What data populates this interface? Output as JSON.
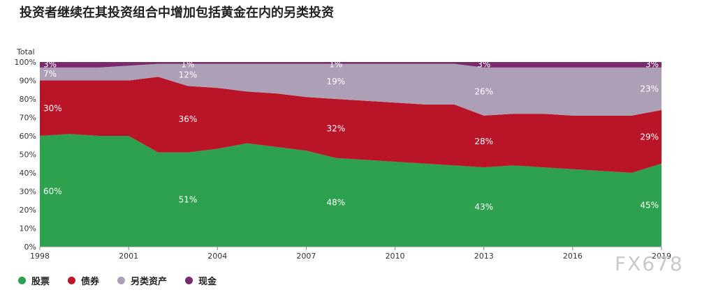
{
  "title": "投资者继续在其投资组合中增加包括黄金在内的另类投资",
  "watermark": "FX678",
  "chart_data": {
    "type": "area",
    "stacked": true,
    "percent": true,
    "ylabel": "Total",
    "ylim": [
      0,
      100
    ],
    "y_ticks": [
      "0%",
      "10%",
      "20%",
      "30%",
      "40%",
      "50%",
      "60%",
      "70%",
      "80%",
      "90%",
      "100%"
    ],
    "x_ticks": [
      1998,
      2001,
      2004,
      2007,
      2010,
      2013,
      2016,
      2019
    ],
    "x": [
      1998,
      1999,
      2000,
      2001,
      2002,
      2003,
      2004,
      2005,
      2006,
      2007,
      2008,
      2009,
      2010,
      2011,
      2012,
      2013,
      2014,
      2015,
      2016,
      2017,
      2018,
      2019
    ],
    "series": [
      {
        "name": "股票",
        "color": "#2ea14f",
        "values": [
          60,
          61,
          60,
          60,
          51,
          51,
          53,
          56,
          54,
          52,
          48,
          47,
          46,
          45,
          44,
          43,
          44,
          43,
          42,
          41,
          40,
          45
        ]
      },
      {
        "name": "债券",
        "color": "#b91428",
        "values": [
          30,
          29,
          30,
          30,
          41,
          36,
          33,
          28,
          29,
          29,
          32,
          32,
          32,
          32,
          33,
          28,
          28,
          29,
          29,
          30,
          31,
          29
        ]
      },
      {
        "name": "另类资产",
        "color": "#ad9fb6",
        "values": [
          7,
          7,
          7,
          8,
          7,
          12,
          13,
          15,
          16,
          18,
          19,
          20,
          21,
          22,
          22,
          26,
          25,
          25,
          26,
          26,
          26,
          23
        ]
      },
      {
        "name": "现金",
        "color": "#7a2a6e",
        "values": [
          3,
          3,
          3,
          2,
          1,
          1,
          1,
          1,
          1,
          1,
          1,
          1,
          1,
          1,
          1,
          3,
          3,
          3,
          3,
          3,
          3,
          3
        ]
      }
    ],
    "data_labels": [
      {
        "series": 0,
        "x": 1998,
        "text": "60%"
      },
      {
        "series": 1,
        "x": 1998,
        "text": "30%"
      },
      {
        "series": 2,
        "x": 1998,
        "text": "7%"
      },
      {
        "series": 3,
        "x": 1998,
        "text": "3%"
      },
      {
        "series": 0,
        "x": 2003,
        "text": "51%"
      },
      {
        "series": 1,
        "x": 2003,
        "text": "36%"
      },
      {
        "series": 2,
        "x": 2003,
        "text": "12%"
      },
      {
        "series": 3,
        "x": 2003,
        "text": "1%"
      },
      {
        "series": 0,
        "x": 2008,
        "text": "48%"
      },
      {
        "series": 1,
        "x": 2008,
        "text": "32%"
      },
      {
        "series": 2,
        "x": 2008,
        "text": "19%"
      },
      {
        "series": 3,
        "x": 2008,
        "text": "1%"
      },
      {
        "series": 0,
        "x": 2013,
        "text": "43%"
      },
      {
        "series": 1,
        "x": 2013,
        "text": "28%"
      },
      {
        "series": 2,
        "x": 2013,
        "text": "26%"
      },
      {
        "series": 3,
        "x": 2013,
        "text": "3%"
      },
      {
        "series": 0,
        "x": 2019,
        "text": "45%"
      },
      {
        "series": 1,
        "x": 2019,
        "text": "29%"
      },
      {
        "series": 2,
        "x": 2019,
        "text": "23%"
      },
      {
        "series": 3,
        "x": 2019,
        "text": "3%"
      }
    ],
    "legend_position": "bottom-left"
  }
}
